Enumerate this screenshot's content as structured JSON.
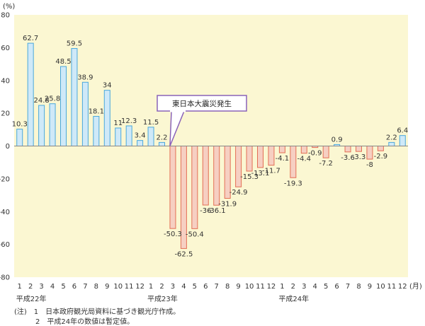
{
  "chart_data": {
    "type": "bar",
    "y_unit": "(%)",
    "x_unit": "(月)",
    "ylim": [
      -80,
      80
    ],
    "y_ticks": [
      80,
      60,
      40,
      20,
      0,
      -20,
      -40,
      -60,
      -80
    ],
    "categories": [
      "1",
      "2",
      "3",
      "4",
      "5",
      "6",
      "7",
      "8",
      "9",
      "10",
      "11",
      "12",
      "1",
      "2",
      "3",
      "4",
      "5",
      "6",
      "7",
      "8",
      "9",
      "10",
      "11",
      "12",
      "1",
      "2",
      "3",
      "4",
      "5",
      "6",
      "7",
      "8",
      "9",
      "10",
      "11",
      "12"
    ],
    "values": [
      10.3,
      62.7,
      24.8,
      25.8,
      48.5,
      59.5,
      38.9,
      18.1,
      34,
      11,
      12.3,
      3.4,
      11.5,
      2.2,
      -50.3,
      -62.5,
      -50.4,
      -36,
      -36.1,
      -31.9,
      -24.9,
      -15.3,
      -13.1,
      -11.7,
      -4.1,
      -19.3,
      -4.4,
      -0.9,
      -7.2,
      0.9,
      -3.6,
      -3.3,
      -8,
      -2.9,
      2.2,
      6.4
    ],
    "value_labels": [
      "10.3",
      "62.7",
      "24.8",
      "25.8",
      "48.5",
      "59.5",
      "38.9",
      "18.1",
      "34",
      "11",
      "12.3",
      "3.4",
      "11.5",
      "2.2",
      "-50.3",
      "-62.5",
      "-50.4",
      "-36",
      "-36.1",
      "-31.9",
      "-24.9",
      "-15.3",
      "-13.1",
      "-11.7",
      "-4.1",
      "-19.3",
      "-4.4",
      "-0.9",
      "-7.2",
      "0.9",
      "-3.6",
      "-3.3",
      "-8",
      "-2.9",
      "2.2",
      "6.4"
    ],
    "year_labels": [
      {
        "label": "平成22年",
        "index": 0
      },
      {
        "label": "平成23年",
        "index": 12
      },
      {
        "label": "平成24年",
        "index": 24
      }
    ],
    "annotation": {
      "text": "東日本大震災発生",
      "index": 14
    },
    "colors": {
      "plot_bg": "#fbf7d2",
      "positive_fill": "#cfe9f8",
      "positive_stroke": "#4aa8dc",
      "negative_fill": "#f6cfc2",
      "negative_stroke": "#e36f55",
      "callout_border": "#8a63b8"
    },
    "grid": false
  },
  "notes": {
    "line1": "(注)　1　日本政府観光局資料に基づき観光庁作成。",
    "line2": "　　　2　平成24年の数値は暫定値。"
  }
}
